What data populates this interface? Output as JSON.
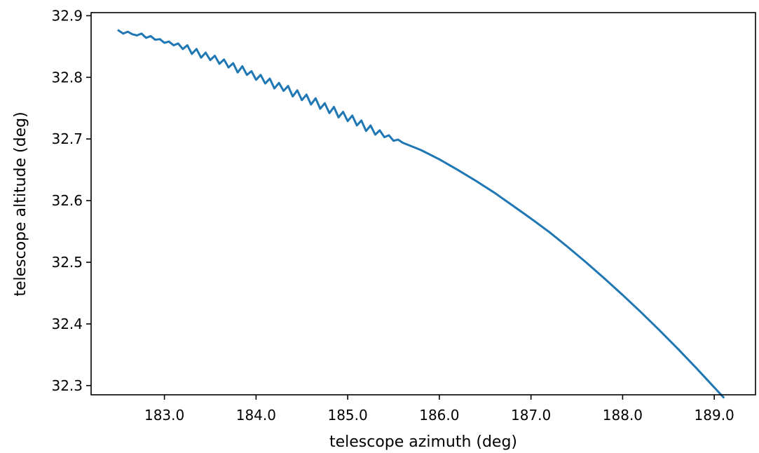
{
  "chart_data": {
    "type": "line",
    "title": "",
    "xlabel": "telescope azimuth (deg)",
    "ylabel": "telescope altitude (deg)",
    "xlim": [
      182.2,
      189.45
    ],
    "ylim": [
      32.285,
      32.905
    ],
    "xticks": [
      183.0,
      184.0,
      185.0,
      186.0,
      187.0,
      188.0,
      189.0
    ],
    "xtick_labels": [
      "183.0",
      "184.0",
      "185.0",
      "186.0",
      "187.0",
      "188.0",
      "189.0"
    ],
    "yticks": [
      32.3,
      32.4,
      32.5,
      32.6,
      32.7,
      32.8,
      32.9
    ],
    "ytick_labels": [
      "32.3",
      "32.4",
      "32.5",
      "32.6",
      "32.7",
      "32.8",
      "32.9"
    ],
    "grid": false,
    "line_color": "#1f77b4",
    "series": [
      {
        "x": [
          182.5,
          182.55,
          182.6,
          182.65,
          182.7,
          182.75,
          182.8,
          182.85,
          182.9,
          182.95,
          183.0,
          183.05,
          183.1,
          183.15,
          183.2,
          183.25,
          183.3,
          183.35,
          183.4,
          183.45,
          183.5,
          183.55,
          183.6,
          183.65,
          183.7,
          183.75,
          183.8,
          183.85,
          183.9,
          183.95,
          184.0,
          184.05,
          184.1,
          184.15,
          184.2,
          184.25,
          184.3,
          184.35,
          184.4,
          184.45,
          184.5,
          184.55,
          184.6,
          184.65,
          184.7,
          184.75,
          184.8,
          184.85,
          184.9,
          184.95,
          185.0,
          185.05,
          185.1,
          185.15,
          185.2,
          185.25,
          185.3,
          185.35,
          185.4,
          185.45,
          185.5,
          185.55,
          185.6,
          185.8,
          186.0,
          186.2,
          186.4,
          186.6,
          186.8,
          187.0,
          187.2,
          187.4,
          187.6,
          187.8,
          188.0,
          188.2,
          188.4,
          188.6,
          188.8,
          189.0,
          189.1
        ],
        "y": [
          32.876,
          32.871,
          32.874,
          32.87,
          32.868,
          32.871,
          32.864,
          32.867,
          32.861,
          32.862,
          32.856,
          32.858,
          32.852,
          32.855,
          32.846,
          32.852,
          32.838,
          32.846,
          32.832,
          32.84,
          32.828,
          32.835,
          32.822,
          32.829,
          32.816,
          32.823,
          32.808,
          32.818,
          32.804,
          32.81,
          32.796,
          32.804,
          32.79,
          32.798,
          32.782,
          32.791,
          32.778,
          32.786,
          32.769,
          32.779,
          32.763,
          32.772,
          32.756,
          32.766,
          32.749,
          32.758,
          32.742,
          32.752,
          32.735,
          32.744,
          32.729,
          32.738,
          32.722,
          32.73,
          32.713,
          32.722,
          32.707,
          32.714,
          32.703,
          32.706,
          32.697,
          32.699,
          32.694,
          32.682,
          32.667,
          32.65,
          32.632,
          32.613,
          32.592,
          32.571,
          32.549,
          32.525,
          32.5,
          32.474,
          32.447,
          32.419,
          32.39,
          32.36,
          32.329,
          32.297,
          32.281
        ]
      }
    ]
  }
}
